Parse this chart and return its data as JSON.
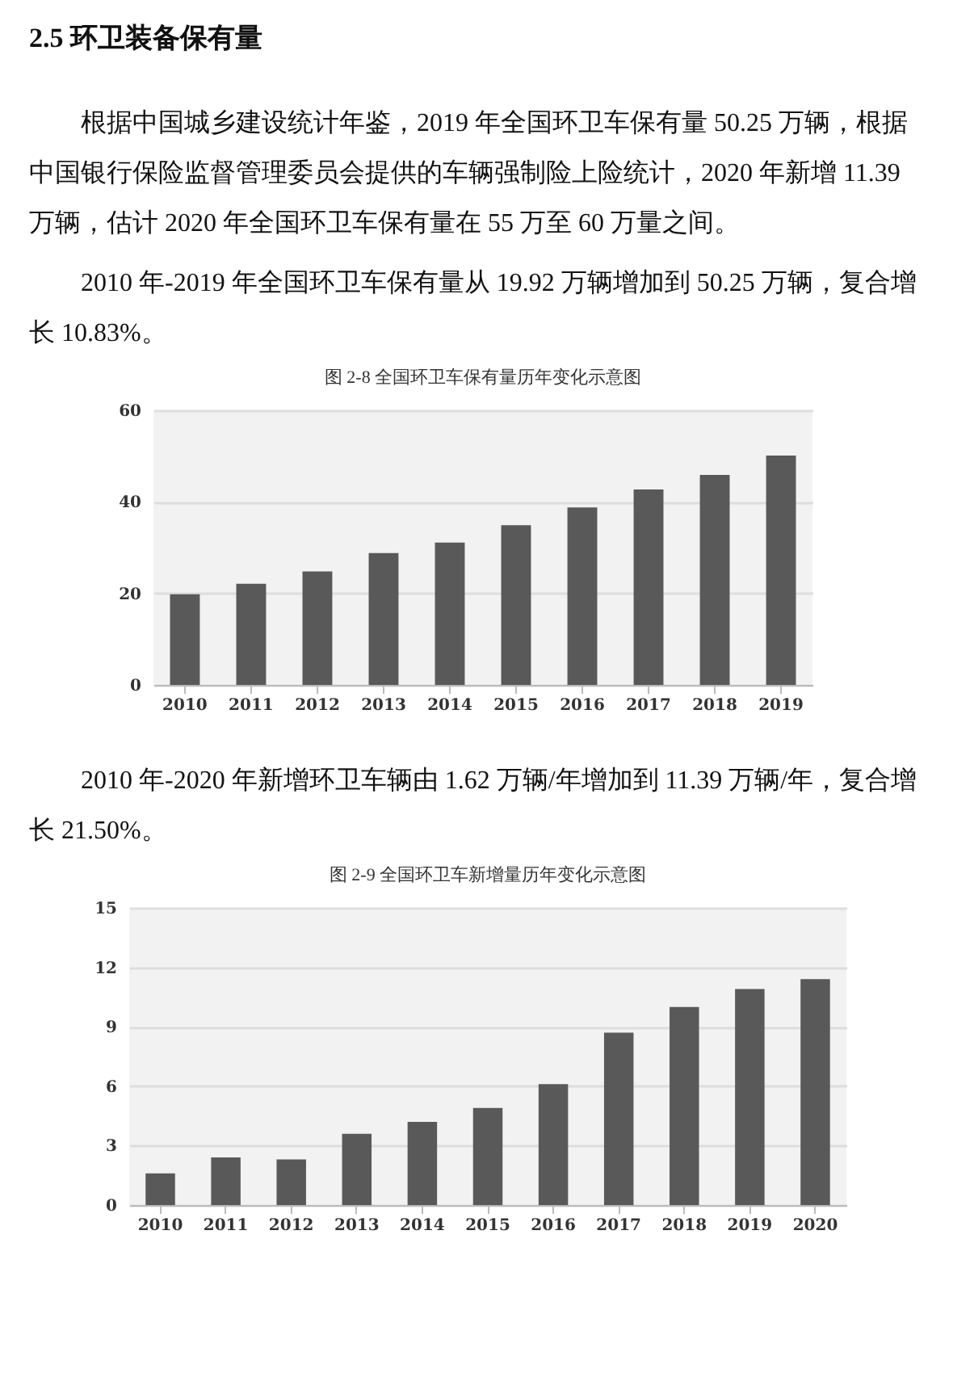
{
  "chart_data": [
    {
      "type": "bar",
      "title": "图 2-8 全国环卫车保有量历年变化示意图",
      "annotations": [
        "2.5 环卫装备保有量",
        "根据中国城乡建设统计年鉴，2019 年全国环卫车保有量 50.25 万辆，根据中国银行保险监督管理委员会提供的车辆强制险上险统计，2020 年新增 11.39 万辆，估计 2020 年全国环卫车保有量在 55 万至 60 万量之间。",
        "2010 年-2019 年全国环卫车保有量从 19.92 万辆增加到 50.25 万辆，复合增长 10.83%。"
      ],
      "categories": [
        "2010",
        "2011",
        "2012",
        "2013",
        "2014",
        "2015",
        "2016",
        "2017",
        "2018",
        "2019"
      ],
      "values": [
        19.8,
        22.1,
        24.8,
        28.8,
        31.1,
        34.9,
        38.8,
        42.7,
        45.9,
        50.1
      ],
      "color": "#595959",
      "ylim": [
        0,
        60
      ],
      "yticks": [
        0,
        20,
        40,
        60
      ],
      "grid": "y"
    },
    {
      "type": "bar",
      "title": "图 2-9 全国环卫车新增量历年变化示意图",
      "annotations": [
        "2010 年-2020 年新增环卫车辆由 1.62 万辆/年增加到 11.39 万辆/年，复合增长 21.50%。"
      ],
      "categories": [
        "2010",
        "2011",
        "2012",
        "2013",
        "2014",
        "2015",
        "2016",
        "2017",
        "2018",
        "2019",
        "2020"
      ],
      "values": [
        1.6,
        2.4,
        2.3,
        3.6,
        4.2,
        4.9,
        6.1,
        8.7,
        10.0,
        10.9,
        11.4
      ],
      "color": "#595959",
      "ylim": [
        0,
        15
      ],
      "yticks": [
        0,
        3,
        6,
        9,
        12,
        15
      ],
      "grid": "y"
    }
  ]
}
